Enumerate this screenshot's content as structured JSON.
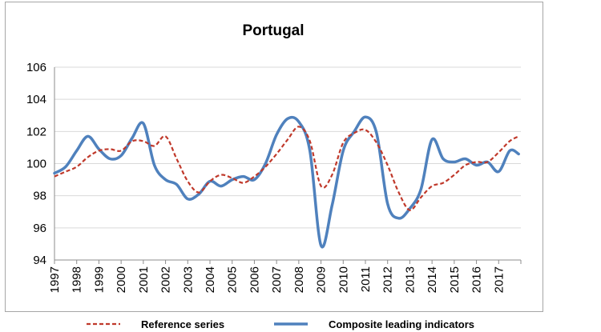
{
  "chart_data": {
    "type": "line",
    "title": "Portugal",
    "xlabel": "",
    "ylabel": "",
    "ylim": [
      94,
      106
    ],
    "yticks": [
      94,
      96,
      98,
      100,
      102,
      104,
      106
    ],
    "xlim": [
      1997,
      2018
    ],
    "xtick_labels": [
      "1997",
      "1998",
      "1999",
      "2000",
      "2001",
      "2002",
      "2003",
      "2004",
      "2005",
      "2006",
      "2007",
      "2008",
      "2009",
      "2010",
      "2011",
      "2012",
      "2013",
      "2014",
      "2015",
      "2016",
      "2017"
    ],
    "grid": true,
    "legend_position": "bottom",
    "series": [
      {
        "name": "Reference series",
        "color": "#c0392b",
        "style": "dashed",
        "x": [
          1997.0,
          1997.5,
          1998.0,
          1998.5,
          1999.0,
          1999.5,
          2000.0,
          2000.5,
          2001.0,
          2001.5,
          2002.0,
          2002.5,
          2003.0,
          2003.5,
          2004.0,
          2004.5,
          2005.0,
          2005.5,
          2006.0,
          2006.5,
          2007.0,
          2007.5,
          2008.0,
          2008.5,
          2009.0,
          2009.5,
          2010.0,
          2010.5,
          2011.0,
          2011.5,
          2012.0,
          2012.5,
          2013.0,
          2013.5,
          2014.0,
          2014.5,
          2015.0,
          2015.5,
          2016.0,
          2016.5,
          2017.0,
          2017.5,
          2017.9
        ],
        "values": [
          99.2,
          99.5,
          99.8,
          100.4,
          100.8,
          100.9,
          100.8,
          101.4,
          101.4,
          101.1,
          101.7,
          100.3,
          98.9,
          98.2,
          98.9,
          99.3,
          99.1,
          98.8,
          99.2,
          99.8,
          100.6,
          101.5,
          102.3,
          101.4,
          98.6,
          99.3,
          101.3,
          101.9,
          102.1,
          101.3,
          99.9,
          98.2,
          97.1,
          97.9,
          98.6,
          98.8,
          99.3,
          99.9,
          100.1,
          100.1,
          100.7,
          101.4,
          101.7
        ]
      },
      {
        "name": "Composite leading indicators",
        "color": "#4f81bd",
        "style": "solid",
        "x": [
          1997.0,
          1997.5,
          1998.0,
          1998.5,
          1999.0,
          1999.5,
          2000.0,
          2000.5,
          2001.0,
          2001.5,
          2002.0,
          2002.5,
          2003.0,
          2003.5,
          2004.0,
          2004.5,
          2005.0,
          2005.5,
          2006.0,
          2006.5,
          2007.0,
          2007.5,
          2008.0,
          2008.5,
          2009.0,
          2009.5,
          2010.0,
          2010.5,
          2011.0,
          2011.5,
          2012.0,
          2012.5,
          2013.0,
          2013.5,
          2014.0,
          2014.5,
          2015.0,
          2015.5,
          2016.0,
          2016.5,
          2017.0,
          2017.5,
          2017.9
        ],
        "values": [
          99.4,
          99.8,
          100.8,
          101.7,
          100.9,
          100.3,
          100.5,
          101.6,
          102.5,
          99.9,
          99.0,
          98.7,
          97.8,
          98.1,
          98.9,
          98.6,
          99.0,
          99.2,
          99.0,
          100.0,
          101.8,
          102.8,
          102.6,
          100.8,
          94.9,
          97.4,
          100.8,
          102.0,
          102.9,
          101.9,
          97.5,
          96.6,
          97.2,
          98.4,
          101.5,
          100.3,
          100.1,
          100.3,
          99.9,
          100.1,
          99.5,
          100.8,
          100.6
        ]
      }
    ]
  }
}
